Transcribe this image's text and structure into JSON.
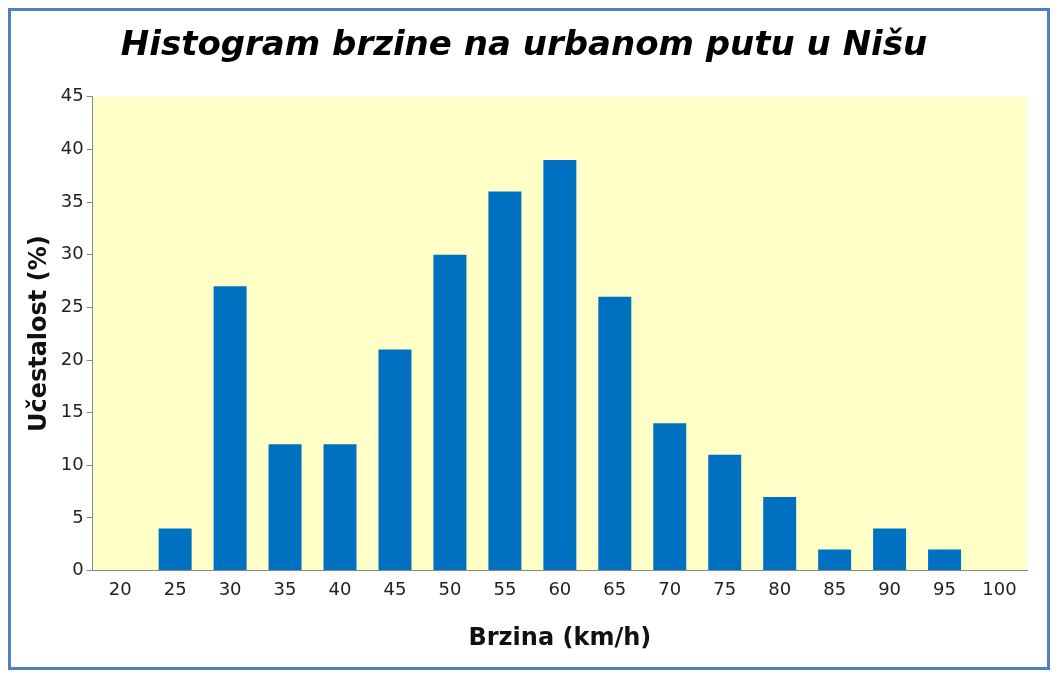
{
  "chart_data": {
    "type": "bar",
    "title": "Histogram brzine na urbanom putu u Nišu",
    "xlabel": "Brzina (km/h)",
    "ylabel": "Učestalost (%)",
    "categories": [
      "20",
      "25",
      "30",
      "35",
      "40",
      "45",
      "50",
      "55",
      "60",
      "65",
      "70",
      "75",
      "80",
      "85",
      "90",
      "95",
      "100"
    ],
    "values": [
      0,
      4,
      27,
      12,
      12,
      21,
      30,
      36,
      39,
      26,
      14,
      11,
      7,
      2,
      4,
      2,
      0
    ],
    "color": "#0070c0",
    "ylim": [
      0,
      45
    ],
    "yticks": [
      0,
      5,
      10,
      15,
      20,
      25,
      30,
      35,
      40,
      45
    ],
    "grid": false,
    "legend": false
  }
}
